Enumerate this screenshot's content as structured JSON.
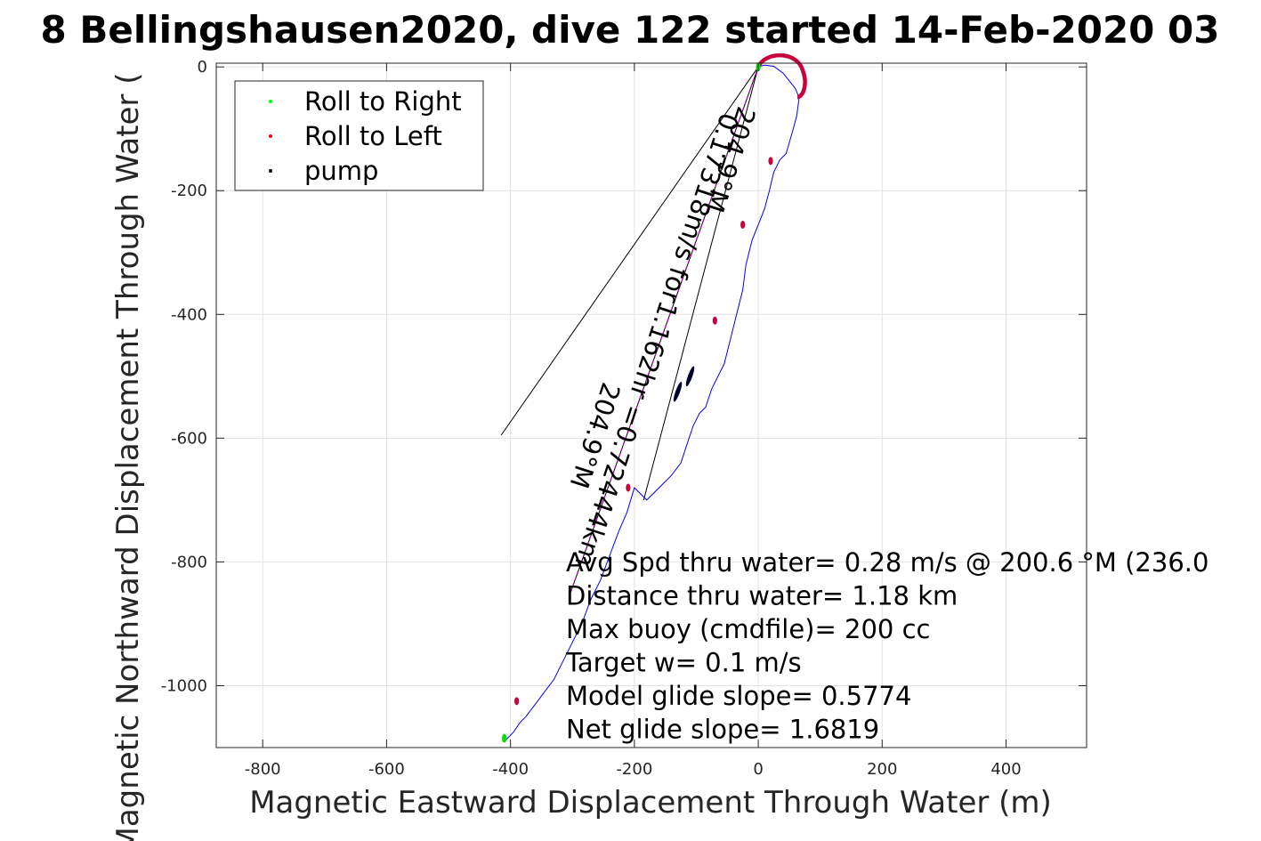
{
  "chart_data": {
    "type": "line",
    "title": "8 Bellingshausen2020, dive 122 started 14-Feb-2020 03",
    "xlabel": "Magnetic Eastward Displacement Through Water (m)",
    "ylabel": "Magnetic Northward Displacement Through Water (",
    "xlim": [
      -875,
      530
    ],
    "ylim": [
      -1100,
      6
    ],
    "xticks": [
      -800,
      -600,
      -400,
      -200,
      0,
      200,
      400
    ],
    "yticks": [
      0,
      -200,
      -400,
      -600,
      -800,
      -1000
    ],
    "xtick_labels": [
      "-800",
      "-600",
      "-400",
      "-200",
      "0",
      "200",
      "400"
    ],
    "ytick_labels": [
      "0",
      "-200",
      "-400",
      "-600",
      "-800",
      "-1000"
    ],
    "grid": true,
    "legend": {
      "placement": "top-left",
      "entries": [
        {
          "label": "Roll to Right",
          "color": "#00ff00"
        },
        {
          "label": "Roll to Left",
          "color": "#ff0000"
        },
        {
          "label": "pump",
          "color": "#000000"
        }
      ]
    },
    "series": [
      {
        "color": "#0000ff",
        "x": [
          0,
          10,
          25,
          40,
          52,
          60,
          66,
          62,
          55,
          45,
          35,
          25,
          18,
          10,
          0,
          -10,
          -20,
          -25,
          -35,
          -45,
          -55,
          -65,
          -75,
          -85,
          -95,
          -105,
          -115,
          -125,
          -140,
          -160,
          -180,
          -200,
          -212,
          -225,
          -240,
          -255,
          -270,
          -285,
          -300,
          -315,
          -330,
          -345,
          -360,
          -375,
          -385,
          -395,
          -405,
          -410
        ],
        "y": [
          0,
          3,
          1,
          -10,
          -25,
          -35,
          -50,
          -80,
          -105,
          -140,
          -150,
          -170,
          -200,
          -230,
          -255,
          -280,
          -320,
          -360,
          -400,
          -440,
          -480,
          -500,
          -520,
          -550,
          -560,
          -580,
          -610,
          -640,
          -660,
          -680,
          -700,
          -680,
          -720,
          -750,
          -790,
          -830,
          -860,
          -900,
          -930,
          -960,
          -990,
          -1010,
          -1030,
          -1050,
          -1060,
          -1075,
          -1085,
          -1090
        ]
      }
    ],
    "roll_left_points": [
      {
        "x": 20,
        "y": -152
      },
      {
        "x": -25,
        "y": -255
      },
      {
        "x": -70,
        "y": -410
      },
      {
        "x": -210,
        "y": -680
      },
      {
        "x": -390,
        "y": -1025
      }
    ],
    "roll_right_points": [
      {
        "x": -410,
        "y": -1085
      },
      {
        "x": 0,
        "y": 0
      }
    ],
    "pump_points": [
      {
        "x": -130,
        "y": -525
      },
      {
        "x": -110,
        "y": -500
      }
    ],
    "reference_lines": [
      {
        "x": [
          0,
          -415
        ],
        "y": [
          0,
          -595
        ]
      },
      {
        "x": [
          0,
          -185
        ],
        "y": [
          0,
          -700
        ]
      },
      {
        "x": [
          0,
          -305
        ],
        "y": [
          0,
          -855
        ]
      }
    ],
    "annotations": [
      "0.17318m/s for1.162hr =0.72444km",
      "204.9°M",
      "204.9°M"
    ],
    "stats": [
      "Avg Spd thru water=  0.28 m/s @ 200.6 °M (236.0",
      "Distance thru water=  1.18 km",
      "Max buoy (cmdfile)= 200 cc",
      "Target w= 0.1 m/s",
      "Model glide slope= 0.5774",
      "Net glide slope= 1.6819"
    ]
  }
}
